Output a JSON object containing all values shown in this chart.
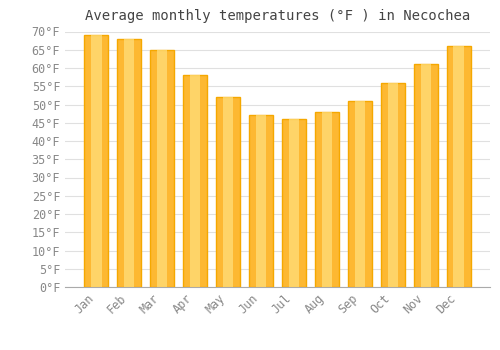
{
  "title": "Average monthly temperatures (°F ) in Necochea",
  "months": [
    "Jan",
    "Feb",
    "Mar",
    "Apr",
    "May",
    "Jun",
    "Jul",
    "Aug",
    "Sep",
    "Oct",
    "Nov",
    "Dec"
  ],
  "values": [
    69,
    68,
    65,
    58,
    52,
    47,
    46,
    48,
    51,
    56,
    61,
    66
  ],
  "bar_color_main": "#FDB832",
  "bar_color_edge": "#F5A800",
  "bar_color_light": "#FFE080",
  "ylim": [
    0,
    70
  ],
  "ytick_step": 5,
  "background_color": "#FFFFFF",
  "grid_color": "#E0E0E0",
  "title_fontsize": 10,
  "tick_fontsize": 8.5,
  "title_color": "#444444",
  "tick_color": "#888888"
}
